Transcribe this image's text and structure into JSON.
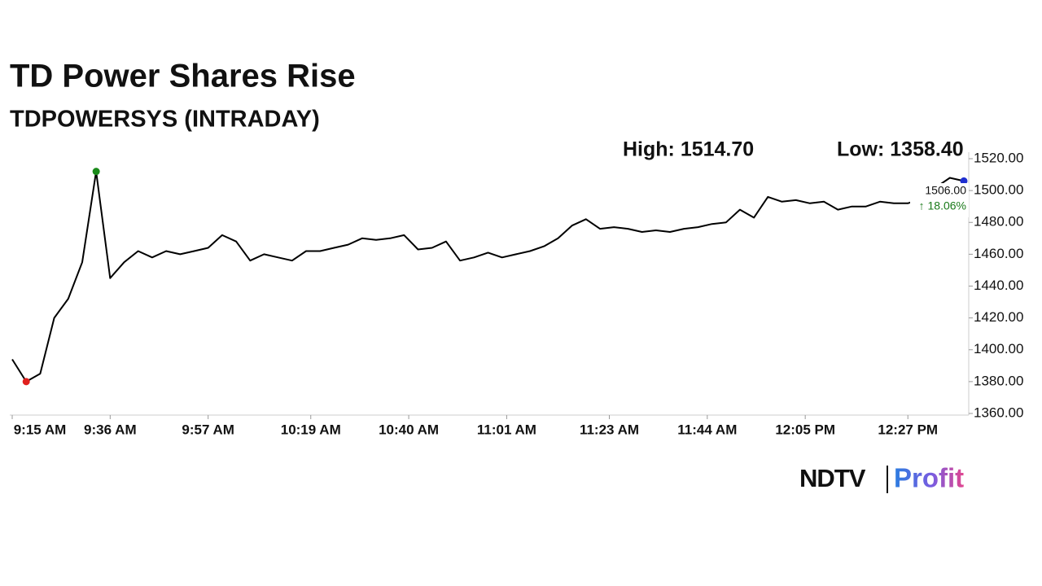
{
  "chart_data": {
    "type": "line",
    "title": "TD Power Shares Rise",
    "subtitle": "TDPOWERSYS (INTRADAY)",
    "annotations": {
      "high": "High: 1514.70",
      "low": "Low: 1358.40",
      "last": "1506.00",
      "change": "↑ 18.06%"
    },
    "x": [
      "9:15 AM",
      "9:18 AM",
      "9:21 AM",
      "9:24 AM",
      "9:27 AM",
      "9:30 AM",
      "9:33 AM",
      "9:36 AM",
      "9:39 AM",
      "9:42 AM",
      "9:45 AM",
      "9:48 AM",
      "9:51 AM",
      "9:54 AM",
      "9:57 AM",
      "10:00 AM",
      "10:03 AM",
      "10:06 AM",
      "10:09 AM",
      "10:12 AM",
      "10:15 AM",
      "10:18 AM",
      "10:21 AM",
      "10:24 AM",
      "10:27 AM",
      "10:30 AM",
      "10:33 AM",
      "10:36 AM",
      "10:39 AM",
      "10:42 AM",
      "10:45 AM",
      "10:48 AM",
      "10:51 AM",
      "10:54 AM",
      "10:57 AM",
      "11:00 AM",
      "11:03 AM",
      "11:06 AM",
      "11:09 AM",
      "11:12 AM",
      "11:15 AM",
      "11:18 AM",
      "11:21 AM",
      "11:24 AM",
      "11:27 AM",
      "11:30 AM",
      "11:33 AM",
      "11:36 AM",
      "11:39 AM",
      "11:42 AM",
      "11:45 AM",
      "11:48 AM",
      "11:51 AM",
      "11:54 AM",
      "11:57 AM",
      "12:00 PM",
      "12:03 PM",
      "12:06 PM",
      "12:09 PM",
      "12:12 PM",
      "12:15 PM",
      "12:18 PM",
      "12:21 PM",
      "12:24 PM",
      "12:27 PM",
      "12:30 PM",
      "12:33 PM",
      "12:36 PM",
      "12:39 PM"
    ],
    "series": [
      {
        "name": "TDPOWERSYS",
        "color": "#000000",
        "values": [
          1394,
          1380,
          1385,
          1420,
          1432,
          1455,
          1512,
          1445,
          1455,
          1462,
          1458,
          1462,
          1460,
          1462,
          1464,
          1472,
          1468,
          1456,
          1460,
          1458,
          1456,
          1462,
          1462,
          1464,
          1466,
          1470,
          1469,
          1470,
          1472,
          1463,
          1464,
          1468,
          1456,
          1458,
          1461,
          1458,
          1460,
          1462,
          1465,
          1470,
          1478,
          1482,
          1476,
          1477,
          1476,
          1474,
          1475,
          1474,
          1476,
          1477,
          1479,
          1480,
          1488,
          1483,
          1496,
          1493,
          1494,
          1492,
          1493,
          1488,
          1490,
          1490,
          1493,
          1492,
          1492,
          1495,
          1502,
          1508,
          1506
        ]
      }
    ],
    "xlim": [
      "9:15 AM",
      "12:39 PM"
    ],
    "xticks": [
      "9:15 AM",
      "9:36 AM",
      "9:57 AM",
      "10:19 AM",
      "10:40 AM",
      "11:01 AM",
      "11:23 AM",
      "11:44 AM",
      "12:05 PM",
      "12:27 PM"
    ],
    "ylim": [
      1360,
      1520
    ],
    "yticks": [
      {
        "value": 1360,
        "label": "1360.00"
      },
      {
        "value": 1380,
        "label": "1380.00"
      },
      {
        "value": 1400,
        "label": "1400.00"
      },
      {
        "value": 1420,
        "label": "1420.00"
      },
      {
        "value": 1440,
        "label": "1440.00"
      },
      {
        "value": 1460,
        "label": "1460.00"
      },
      {
        "value": 1480,
        "label": "1480.00"
      },
      {
        "value": 1500,
        "label": "1500.00"
      },
      {
        "value": 1520,
        "label": "1520.00"
      }
    ],
    "marker_colors": {
      "high": "#1a8a1a",
      "low": "#e0201e",
      "last": "#1f2fd0"
    },
    "change_color": "#1a7a1a",
    "logo": {
      "brand": "NDTV",
      "product": "Profit"
    }
  }
}
